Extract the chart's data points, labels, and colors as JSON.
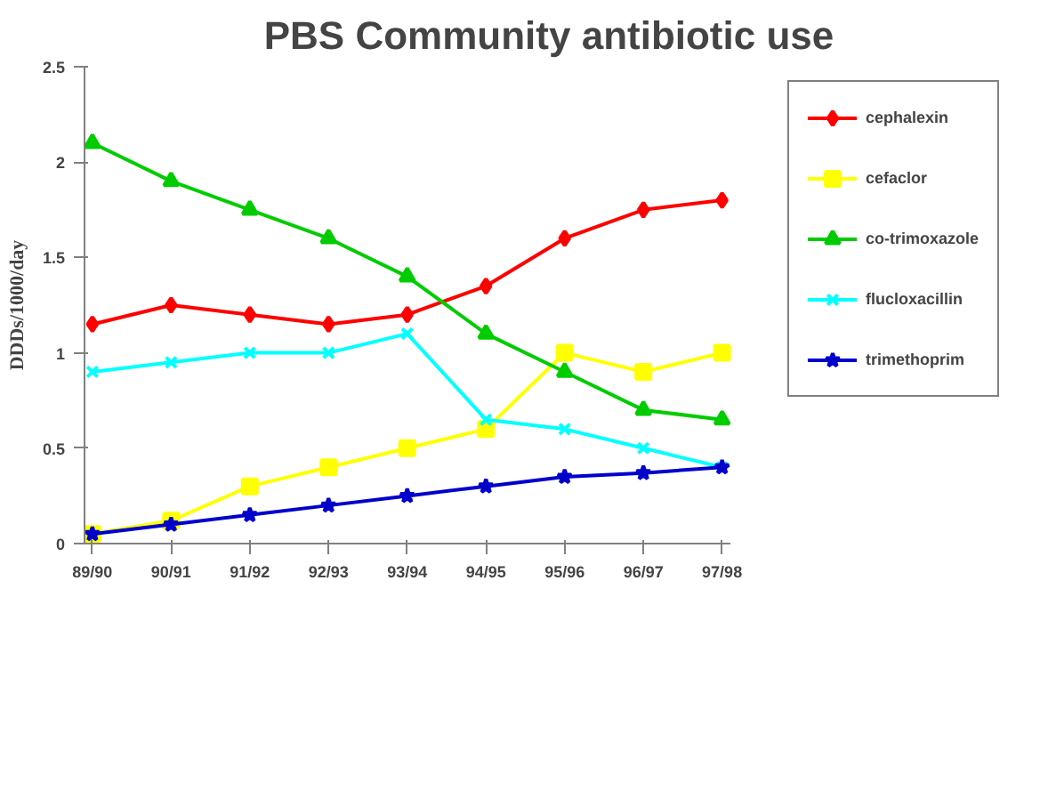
{
  "chart_data": {
    "type": "line",
    "title": "PBS Community antibiotic use",
    "ylabel": "DDDs/1000/day",
    "categories": [
      "89/90",
      "90/91",
      "91/92",
      "92/93",
      "93/94",
      "94/95",
      "95/96",
      "96/97",
      "97/98"
    ],
    "ylim": [
      0,
      2.5
    ],
    "yticks": [
      0,
      0.5,
      1,
      1.5,
      2,
      2.5
    ],
    "grid": false,
    "legend": "right",
    "series": [
      {
        "name": "cephalexin",
        "color": "#ff0000",
        "marker": "diamond",
        "values": [
          1.15,
          1.25,
          1.2,
          1.15,
          1.2,
          1.35,
          1.6,
          1.75,
          1.8
        ]
      },
      {
        "name": "cefaclor",
        "color": "#ffff00",
        "marker": "square",
        "values": [
          0.05,
          0.12,
          0.3,
          0.4,
          0.5,
          0.6,
          1.0,
          0.9,
          1.0
        ]
      },
      {
        "name": "co-trimoxazole",
        "color": "#00cc00",
        "marker": "triangle",
        "values": [
          2.1,
          1.9,
          1.75,
          1.6,
          1.4,
          1.1,
          0.9,
          0.7,
          0.65
        ]
      },
      {
        "name": "flucloxacillin",
        "color": "#00ffff",
        "marker": "cross",
        "values": [
          0.9,
          0.95,
          1.0,
          1.0,
          1.1,
          0.65,
          0.6,
          0.5,
          0.4
        ]
      },
      {
        "name": "trimethoprim",
        "color": "#0000cc",
        "marker": "star",
        "values": [
          0.05,
          0.1,
          0.15,
          0.2,
          0.25,
          0.3,
          0.35,
          0.37,
          0.4
        ]
      }
    ]
  }
}
